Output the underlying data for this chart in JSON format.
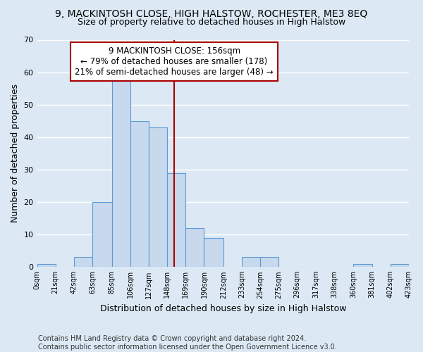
{
  "title1": "9, MACKINTOSH CLOSE, HIGH HALSTOW, ROCHESTER, ME3 8EQ",
  "title2": "Size of property relative to detached houses in High Halstow",
  "xlabel": "Distribution of detached houses by size in High Halstow",
  "ylabel": "Number of detached properties",
  "footer": "Contains HM Land Registry data © Crown copyright and database right 2024.\nContains public sector information licensed under the Open Government Licence v3.0.",
  "bin_edges": [
    0,
    21,
    42,
    63,
    85,
    106,
    127,
    148,
    169,
    190,
    212,
    233,
    254,
    275,
    296,
    317,
    338,
    360,
    381,
    402,
    423
  ],
  "bar_heights": [
    1,
    0,
    3,
    20,
    58,
    45,
    43,
    29,
    12,
    9,
    0,
    3,
    3,
    0,
    0,
    0,
    0,
    1,
    0,
    1
  ],
  "bar_color": "#c8d9ed",
  "bar_edge_color": "#5b9bd5",
  "vline_x": 156,
  "vline_color": "#aa0000",
  "annotation_box_text": "9 MACKINTOSH CLOSE: 156sqm\n← 79% of detached houses are smaller (178)\n21% of semi-detached houses are larger (48) →",
  "annotation_box_facecolor": "white",
  "annotation_box_edgecolor": "#aa0000",
  "ylim": [
    0,
    70
  ],
  "yticks": [
    0,
    10,
    20,
    30,
    40,
    50,
    60,
    70
  ],
  "tick_labels": [
    "0sqm",
    "21sqm",
    "42sqm",
    "63sqm",
    "85sqm",
    "106sqm",
    "127sqm",
    "148sqm",
    "169sqm",
    "190sqm",
    "212sqm",
    "233sqm",
    "254sqm",
    "275sqm",
    "296sqm",
    "317sqm",
    "338sqm",
    "360sqm",
    "381sqm",
    "402sqm",
    "423sqm"
  ],
  "bg_color": "#dce9f5",
  "plot_bg_color": "#dce9f5",
  "grid_color": "white",
  "title1_fontsize": 10,
  "title2_fontsize": 9,
  "xlabel_fontsize": 9,
  "ylabel_fontsize": 9,
  "annotation_fontsize": 8.5,
  "footer_fontsize": 7
}
